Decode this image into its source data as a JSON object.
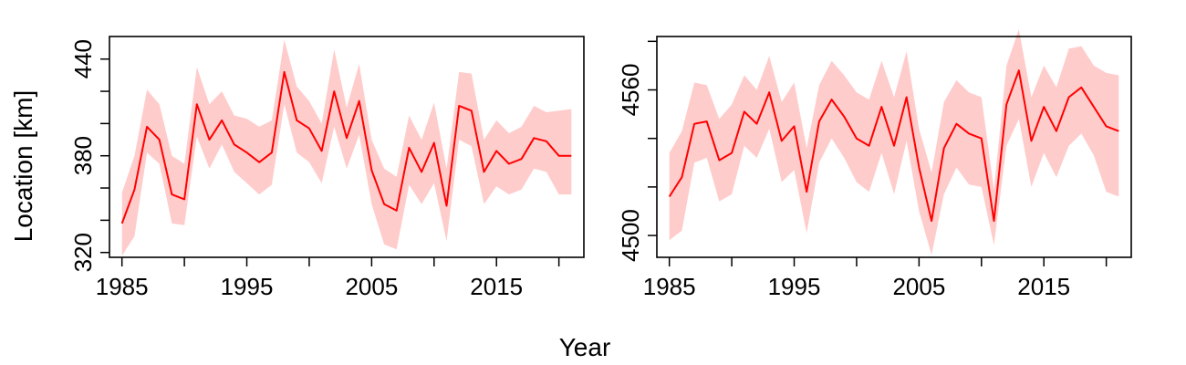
{
  "figure": {
    "xlabel": "Year",
    "ylabel": "Location [km]"
  },
  "chart_data": [
    {
      "type": "line",
      "title": "",
      "xlabel": "Year",
      "ylabel": "Location [km]",
      "xlim": [
        1984,
        2022
      ],
      "ylim": [
        317,
        454
      ],
      "xticks": [
        1985,
        1990,
        1995,
        2000,
        2005,
        2010,
        2015,
        2020
      ],
      "xtick_labels": [
        "1985",
        "",
        "1995",
        "",
        "2005",
        "",
        "2015",
        ""
      ],
      "yticks": [
        320,
        340,
        360,
        380,
        400,
        420,
        440
      ],
      "ytick_labels": [
        "320",
        "",
        "",
        "380",
        "",
        "",
        "440"
      ],
      "grid": false,
      "line_color": "#ff0000",
      "band_color": "#ffcccc",
      "x": [
        1985,
        1986,
        1987,
        1988,
        1989,
        1990,
        1991,
        1992,
        1993,
        1994,
        1995,
        1996,
        1997,
        1998,
        1999,
        2000,
        2001,
        2002,
        2003,
        2004,
        2005,
        2006,
        2007,
        2008,
        2009,
        2010,
        2011,
        2012,
        2013,
        2014,
        2015,
        2016,
        2017,
        2018,
        2019,
        2020,
        2021
      ],
      "series": [
        {
          "values": [
            338,
            359,
            398,
            390,
            356,
            353,
            412,
            390,
            402,
            387,
            382,
            376,
            382,
            432,
            402,
            397,
            383,
            420,
            391,
            414,
            371,
            350,
            346,
            385,
            370,
            388,
            349,
            411,
            408,
            370,
            383,
            375,
            378,
            391,
            389,
            380,
            380
          ]
        }
      ],
      "band_lower": [
        318,
        330,
        382,
        375,
        338,
        337,
        392,
        372,
        387,
        370,
        363,
        356,
        362,
        412,
        382,
        376,
        363,
        398,
        372,
        393,
        350,
        325,
        322,
        362,
        350,
        363,
        327,
        390,
        386,
        350,
        361,
        356,
        359,
        372,
        370,
        356,
        356
      ],
      "band_upper": [
        357,
        380,
        421,
        412,
        380,
        375,
        435,
        412,
        420,
        405,
        403,
        398,
        402,
        452,
        423,
        414,
        400,
        446,
        410,
        437,
        390,
        372,
        367,
        405,
        390,
        413,
        372,
        432,
        431,
        390,
        402,
        394,
        398,
        411,
        407,
        408,
        409
      ]
    },
    {
      "type": "line",
      "title": "",
      "xlabel": "Year",
      "ylabel": "",
      "xlim": [
        1984,
        2022
      ],
      "ylim": [
        4491,
        4582
      ],
      "xticks": [
        1985,
        1990,
        1995,
        2000,
        2005,
        2010,
        2015,
        2020
      ],
      "xtick_labels": [
        "1985",
        "",
        "1995",
        "",
        "2005",
        "",
        "2015",
        ""
      ],
      "yticks": [
        4500,
        4520,
        4540,
        4560,
        4580
      ],
      "ytick_labels": [
        "4500",
        "",
        "",
        "4560",
        ""
      ],
      "grid": false,
      "line_color": "#ff0000",
      "band_color": "#ffcccc",
      "x": [
        1985,
        1986,
        1987,
        1988,
        1989,
        1990,
        1991,
        1992,
        1993,
        1994,
        1995,
        1996,
        1997,
        1998,
        1999,
        2000,
        2001,
        2002,
        2003,
        2004,
        2005,
        2006,
        2007,
        2008,
        2009,
        2010,
        2011,
        2012,
        2013,
        2014,
        2015,
        2016,
        2017,
        2018,
        2019,
        2020,
        2021
      ],
      "series": [
        {
          "values": [
            4516,
            4524,
            4546,
            4547,
            4531,
            4534,
            4551,
            4546,
            4559,
            4539,
            4545,
            4518,
            4547,
            4556,
            4549,
            4540,
            4537,
            4553,
            4537,
            4557,
            4528,
            4506,
            4536,
            4546,
            4542,
            4540,
            4506,
            4554,
            4568,
            4539,
            4553,
            4543,
            4557,
            4561,
            4553,
            4545,
            4543
          ]
        }
      ],
      "band_lower": [
        4498,
        4502,
        4530,
        4532,
        4514,
        4517,
        4537,
        4532,
        4544,
        4522,
        4527,
        4501,
        4530,
        4540,
        4532,
        4522,
        4518,
        4534,
        4517,
        4539,
        4510,
        4492,
        4517,
        4528,
        4521,
        4520,
        4496,
        4537,
        4548,
        4520,
        4534,
        4524,
        4537,
        4542,
        4533,
        4518,
        4516
      ],
      "band_upper": [
        4534,
        4543,
        4563,
        4562,
        4548,
        4554,
        4566,
        4560,
        4574,
        4555,
        4563,
        4536,
        4562,
        4572,
        4566,
        4559,
        4556,
        4572,
        4557,
        4576,
        4544,
        4526,
        4555,
        4564,
        4559,
        4557,
        4519,
        4570,
        4585,
        4557,
        4570,
        4561,
        4577,
        4578,
        4570,
        4567,
        4566
      ]
    }
  ]
}
